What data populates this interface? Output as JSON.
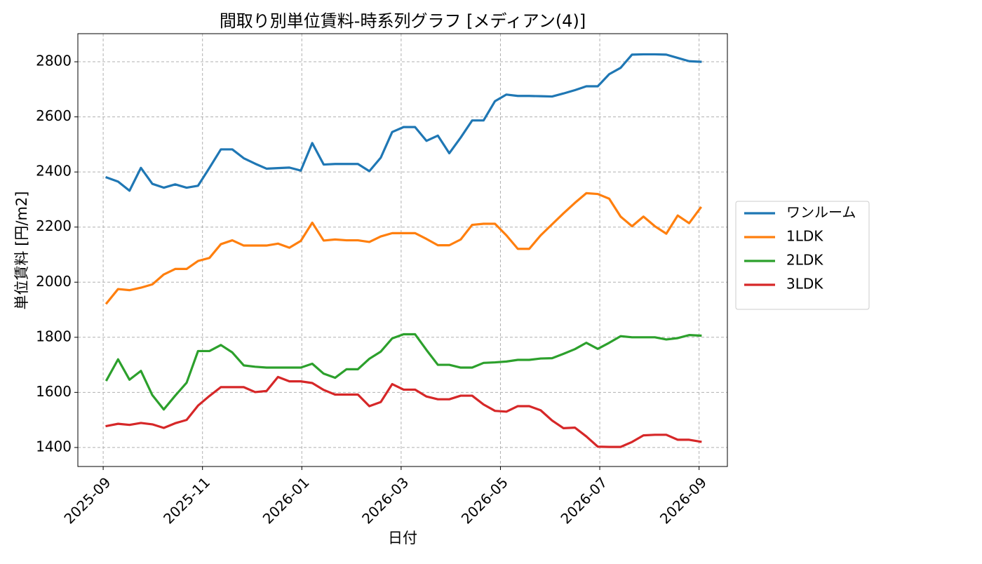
{
  "chart_data": {
    "type": "line",
    "title": "間取り別単位賃料-時系列グラフ [メディアン(4)]",
    "x_label": "日付",
    "y_label": "単位賃料 [円/m2]",
    "x": [
      0.07,
      0.3,
      0.53,
      0.76,
      0.99,
      1.22,
      1.45,
      1.68,
      1.91,
      2.14,
      2.37,
      2.6,
      2.83,
      3.06,
      3.29,
      3.52,
      3.75,
      3.98,
      4.21,
      4.44,
      4.67,
      4.9,
      5.13,
      5.36,
      5.59,
      5.82,
      6.05,
      6.28,
      6.51,
      6.74,
      6.97,
      7.2,
      7.43,
      7.66,
      7.89,
      8.12,
      8.35,
      8.58,
      8.81,
      9.04,
      9.27,
      9.5,
      9.73,
      9.96,
      10.19,
      10.42,
      10.65,
      10.88,
      11.11,
      11.34,
      11.57,
      11.8,
      12.03
    ],
    "xlim": [
      -0.51,
      12.57
    ],
    "xticks": [
      {
        "value": 0,
        "label": "2025-09"
      },
      {
        "value": 2,
        "label": "2025-11"
      },
      {
        "value": 4,
        "label": "2026-01"
      },
      {
        "value": 6,
        "label": "2026-03"
      },
      {
        "value": 8,
        "label": "2026-05"
      },
      {
        "value": 10,
        "label": "2026-07"
      },
      {
        "value": 12,
        "label": "2026-09"
      }
    ],
    "ylim": [
      1331,
      2902
    ],
    "yticks": [
      1400,
      1600,
      1800,
      2000,
      2200,
      2400,
      2600,
      2800
    ],
    "grid": true,
    "legend": "right",
    "series": [
      {
        "name": "ワンルーム",
        "color": "#1f77b4",
        "values": [
          2380,
          2365,
          2332,
          2415,
          2357,
          2343,
          2355,
          2343,
          2350,
          2415,
          2482,
          2482,
          2450,
          2430,
          2412,
          2414,
          2416,
          2405,
          2505,
          2427,
          2429,
          2429,
          2429,
          2403,
          2452,
          2545,
          2563,
          2563,
          2513,
          2532,
          2468,
          2525,
          2587,
          2587,
          2657,
          2681,
          2676,
          2676,
          2675,
          2674,
          2685,
          2697,
          2711,
          2711,
          2755,
          2778,
          2826,
          2827,
          2827,
          2826,
          2814,
          2802,
          2800
        ]
      },
      {
        "name": "1LDK",
        "color": "#ff7f0e",
        "values": [
          1924,
          1975,
          1971,
          1980,
          1992,
          2028,
          2048,
          2048,
          2077,
          2088,
          2138,
          2152,
          2133,
          2133,
          2133,
          2140,
          2125,
          2150,
          2216,
          2151,
          2155,
          2152,
          2152,
          2146,
          2166,
          2178,
          2178,
          2178,
          2157,
          2134,
          2134,
          2155,
          2208,
          2212,
          2212,
          2170,
          2121,
          2121,
          2170,
          2210,
          2250,
          2288,
          2323,
          2320,
          2303,
          2238,
          2203,
          2238,
          2203,
          2176,
          2242,
          2214,
          2270
        ]
      },
      {
        "name": "2LDK",
        "color": "#2ca02c",
        "values": [
          1645,
          1720,
          1646,
          1678,
          1590,
          1538,
          1588,
          1635,
          1750,
          1750,
          1772,
          1745,
          1698,
          1693,
          1690,
          1690,
          1690,
          1690,
          1704,
          1668,
          1653,
          1684,
          1684,
          1722,
          1748,
          1796,
          1811,
          1811,
          1754,
          1700,
          1700,
          1690,
          1690,
          1707,
          1709,
          1712,
          1718,
          1718,
          1723,
          1724,
          1740,
          1757,
          1780,
          1758,
          1780,
          1804,
          1800,
          1800,
          1800,
          1792,
          1797,
          1808,
          1806
        ]
      },
      {
        "name": "3LDK",
        "color": "#d62728",
        "values": [
          1478,
          1486,
          1482,
          1489,
          1484,
          1471,
          1488,
          1500,
          1552,
          1587,
          1619,
          1619,
          1619,
          1601,
          1605,
          1656,
          1640,
          1640,
          1634,
          1609,
          1592,
          1592,
          1592,
          1550,
          1565,
          1630,
          1610,
          1610,
          1585,
          1575,
          1575,
          1588,
          1588,
          1556,
          1533,
          1530,
          1550,
          1550,
          1535,
          1498,
          1470,
          1472,
          1440,
          1403,
          1402,
          1402,
          1420,
          1444,
          1446,
          1446,
          1428,
          1428,
          1421
        ]
      }
    ]
  }
}
